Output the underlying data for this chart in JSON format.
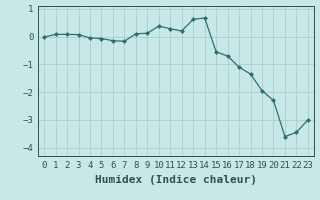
{
  "xlabel": "Humidex (Indice chaleur)",
  "x": [
    0,
    1,
    2,
    3,
    4,
    5,
    6,
    7,
    8,
    9,
    10,
    11,
    12,
    13,
    14,
    15,
    16,
    17,
    18,
    19,
    20,
    21,
    22,
    23
  ],
  "y": [
    -0.02,
    0.08,
    0.08,
    0.07,
    -0.05,
    -0.07,
    -0.15,
    -0.17,
    0.1,
    0.12,
    0.38,
    0.28,
    0.2,
    0.62,
    0.67,
    -0.55,
    -0.7,
    -1.1,
    -1.35,
    -1.95,
    -2.3,
    -3.6,
    -3.45,
    -3.0
  ],
  "line_color": "#2d7070",
  "marker": "D",
  "marker_size": 2.0,
  "bg_color": "#c8e8e8",
  "grid_color": "#aacece",
  "ylim": [
    -4.3,
    1.1
  ],
  "xlim": [
    -0.5,
    23.5
  ],
  "yticks": [
    -4,
    -3,
    -2,
    -1,
    0,
    1
  ],
  "xtick_labels": [
    "0",
    "1",
    "2",
    "3",
    "4",
    "5",
    "6",
    "7",
    "8",
    "9",
    "10",
    "11",
    "12",
    "13",
    "14",
    "15",
    "16",
    "17",
    "18",
    "19",
    "20",
    "21",
    "22",
    "23"
  ],
  "tick_fontsize": 6.5,
  "label_fontsize": 8,
  "tick_color": "#2d5050",
  "spine_color": "#2d5050"
}
